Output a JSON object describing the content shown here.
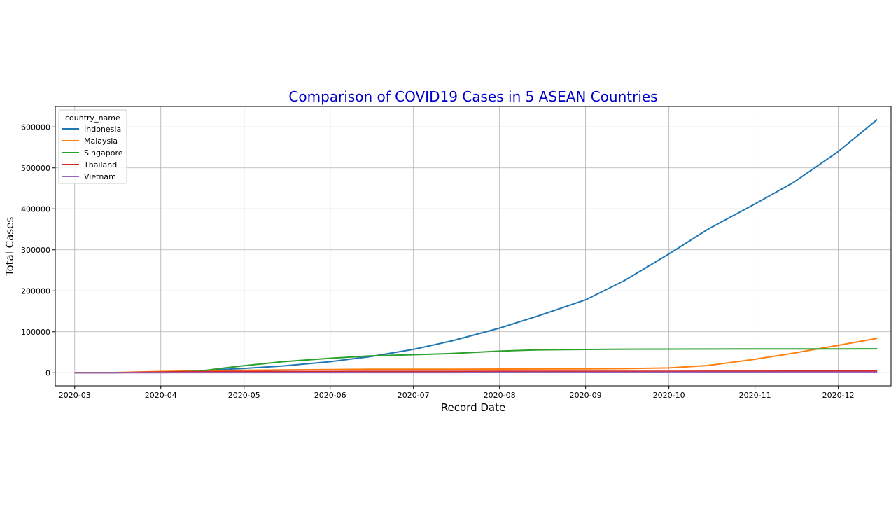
{
  "chart_data": {
    "type": "line",
    "title": "Comparison of COVID19 Cases in 5 ASEAN Countries",
    "xlabel": "Record Date",
    "ylabel": "Total Cases",
    "xlim": [
      "2020-02-23",
      "2020-12-20"
    ],
    "ylim": [
      -32000,
      650000
    ],
    "x_ticks": [
      "2020-03",
      "2020-04",
      "2020-05",
      "2020-06",
      "2020-07",
      "2020-08",
      "2020-09",
      "2020-10",
      "2020-11",
      "2020-12"
    ],
    "y_ticks": [
      0,
      100000,
      200000,
      300000,
      400000,
      500000,
      600000
    ],
    "grid": true,
    "legend": {
      "title": "country_name",
      "placement": "top-left"
    },
    "title_color": "#0000cc",
    "x": [
      "2020-03-01",
      "2020-03-15",
      "2020-04-01",
      "2020-04-15",
      "2020-04-22",
      "2020-05-01",
      "2020-05-15",
      "2020-06-01",
      "2020-06-15",
      "2020-07-01",
      "2020-07-15",
      "2020-08-01",
      "2020-08-15",
      "2020-09-01",
      "2020-09-15",
      "2020-10-01",
      "2020-10-15",
      "2020-11-01",
      "2020-11-15",
      "2020-12-01",
      "2020-12-15"
    ],
    "series": [
      {
        "name": "Indonesia",
        "color": "#1f77b4",
        "values": [
          2,
          120,
          1700,
          5000,
          7500,
          10500,
          16500,
          27000,
          39000,
          57000,
          78000,
          109000,
          139000,
          178000,
          225000,
          290000,
          350000,
          412000,
          465000,
          540000,
          618000
        ]
      },
      {
        "name": "Malaysia",
        "color": "#ff7f0e",
        "values": [
          29,
          430,
          3000,
          5100,
          5500,
          6100,
          6800,
          7800,
          8500,
          8600,
          8700,
          8970,
          9200,
          9400,
          10000,
          11800,
          17500,
          33000,
          48000,
          67000,
          84000
        ]
      },
      {
        "name": "Singapore",
        "color": "#2ca02c",
        "values": [
          100,
          230,
          1000,
          3700,
          10000,
          17000,
          27000,
          35300,
          41000,
          44100,
          47000,
          52800,
          55800,
          56900,
          57500,
          57800,
          57900,
          58000,
          58100,
          58200,
          58400
        ]
      },
      {
        "name": "Thailand",
        "color": "#d62728",
        "values": [
          42,
          110,
          1700,
          2650,
          2800,
          2950,
          3020,
          3080,
          3130,
          3180,
          3230,
          3320,
          3370,
          3430,
          3500,
          3600,
          3700,
          3800,
          3900,
          4000,
          4300
        ]
      },
      {
        "name": "Vietnam",
        "color": "#9467bd",
        "values": [
          16,
          60,
          210,
          270,
          270,
          270,
          315,
          330,
          335,
          355,
          380,
          590,
          950,
          1040,
          1070,
          1100,
          1120,
          1200,
          1280,
          1350,
          1410
        ]
      }
    ]
  }
}
